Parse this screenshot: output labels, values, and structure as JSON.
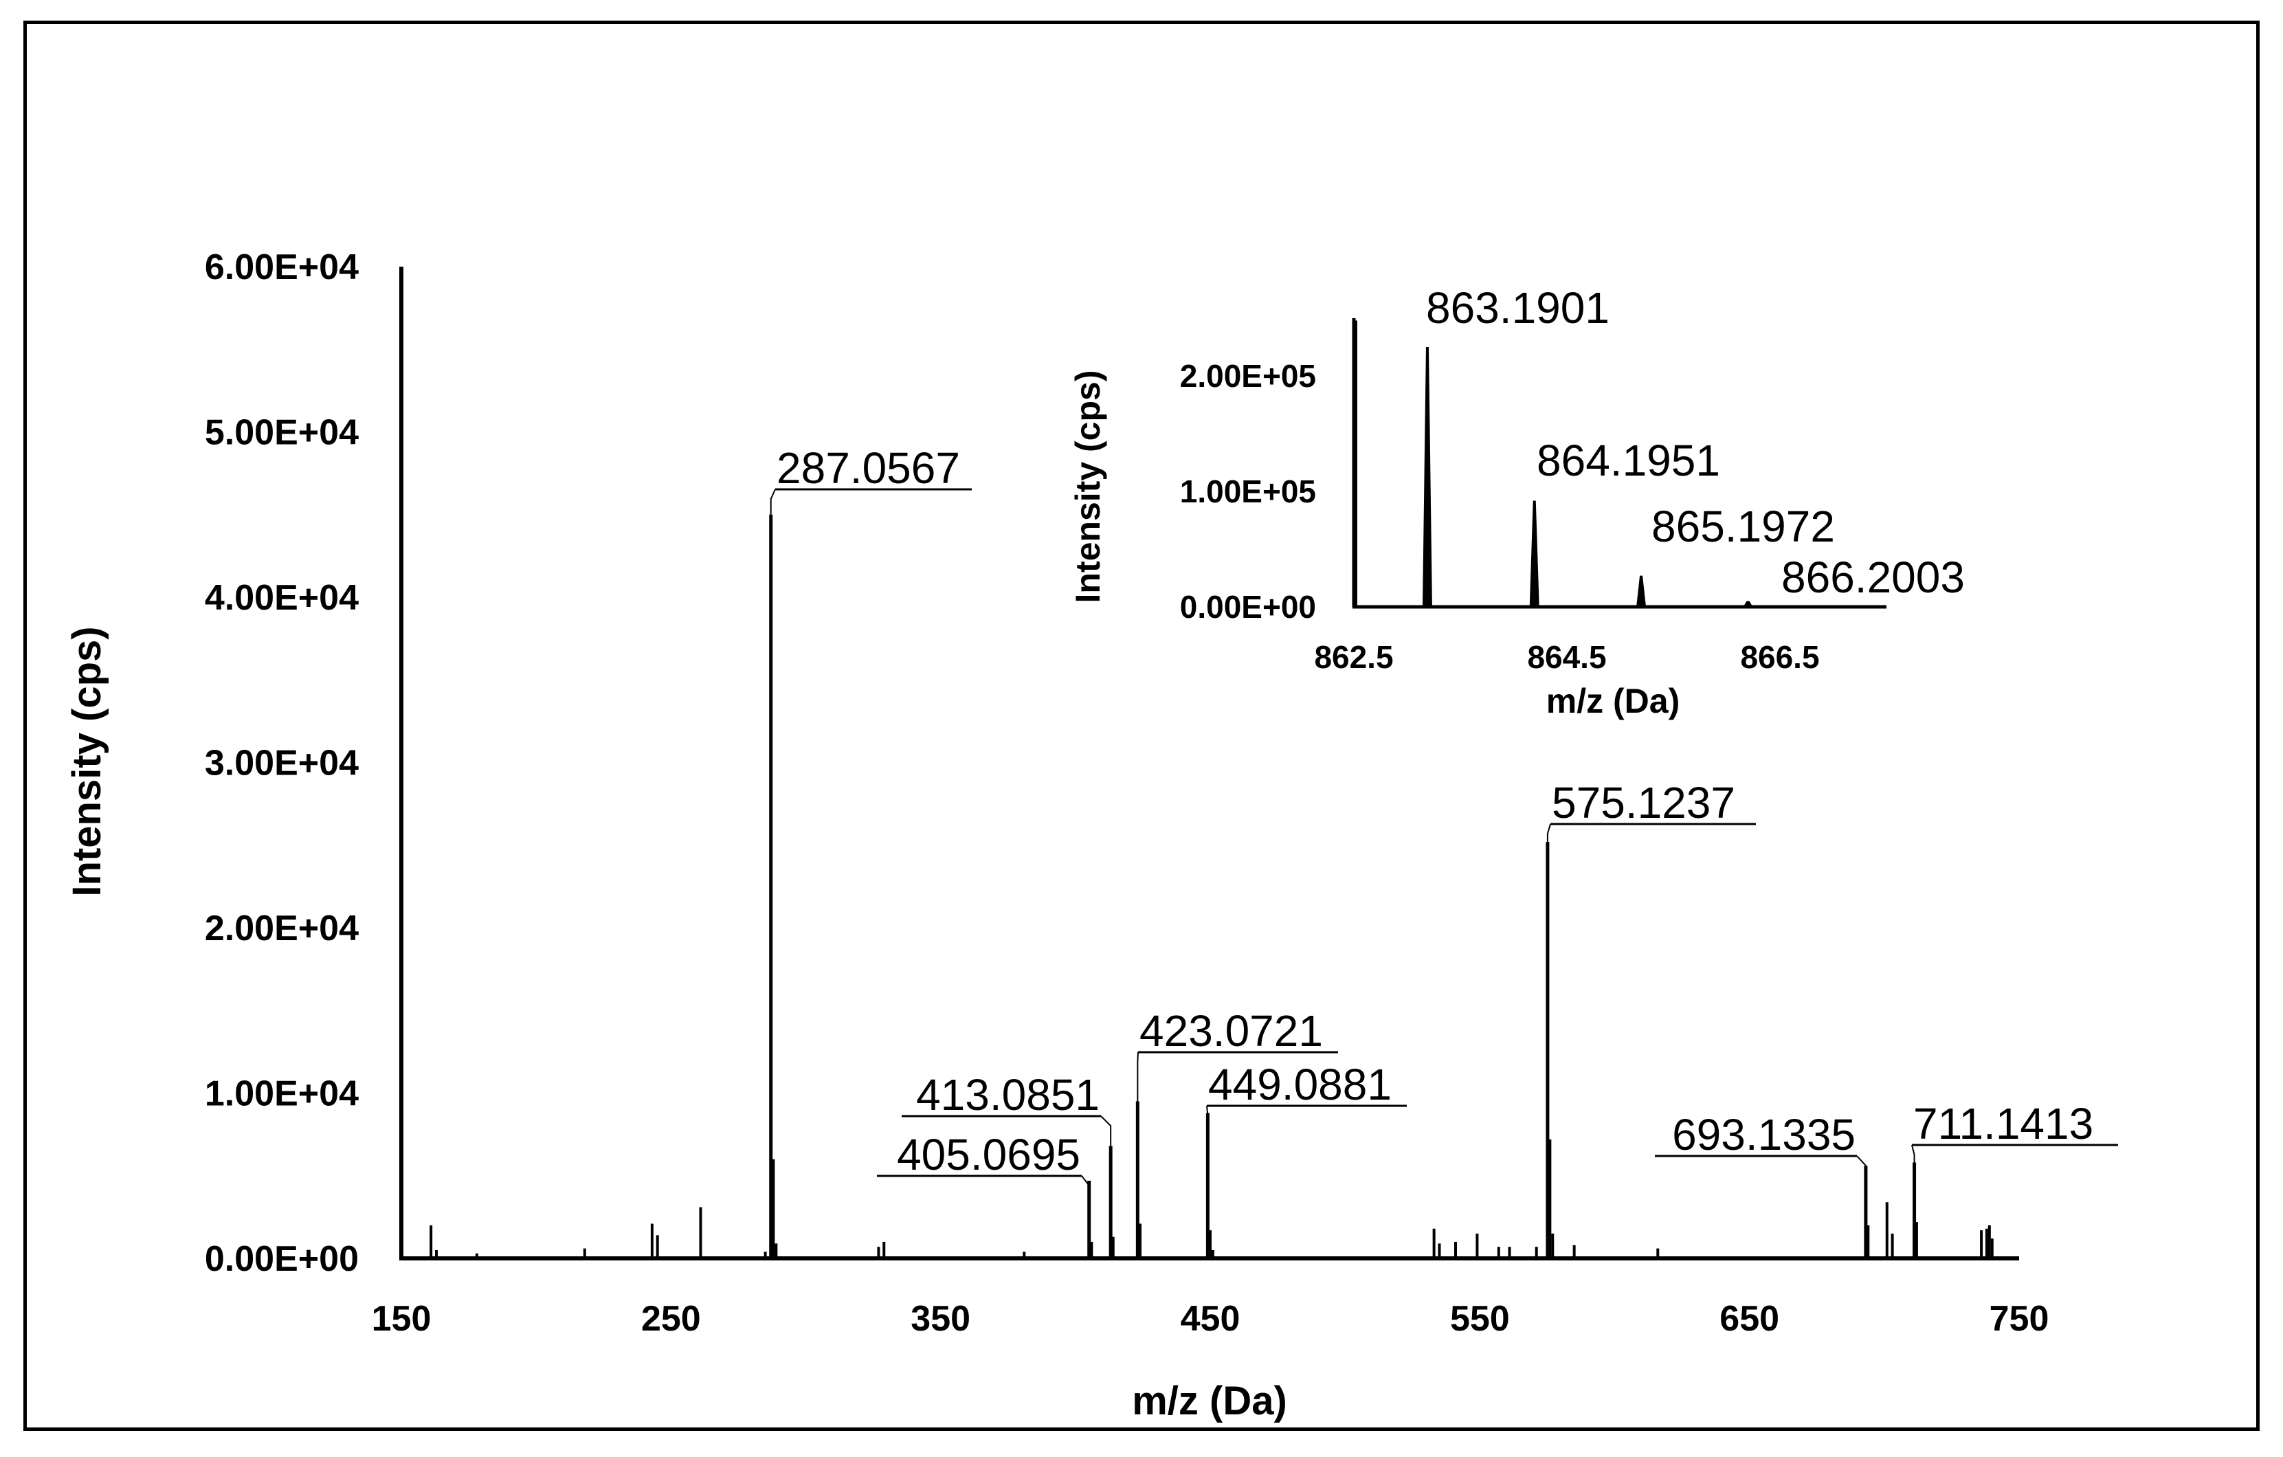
{
  "chart_data": [
    {
      "type": "bar",
      "title": "",
      "xlabel": "m/z (Da)",
      "ylabel": "Intensity (cps)",
      "xlim": [
        150,
        750
      ],
      "ylim": [
        0,
        60000
      ],
      "x_ticks": [
        150,
        250,
        350,
        450,
        550,
        650,
        750
      ],
      "x_tick_labels": [
        "150",
        "250",
        "350",
        "450",
        "550",
        "650",
        "750"
      ],
      "y_ticks": [
        0,
        10000,
        20000,
        30000,
        40000,
        50000,
        60000
      ],
      "y_tick_labels": [
        "0.00E+00",
        "1.00E+04",
        "2.00E+04",
        "3.00E+04",
        "4.00E+04",
        "5.00E+04",
        "6.00E+04"
      ],
      "labeled_peaks": [
        {
          "mz": 287.0567,
          "intensity": 45000,
          "label": "287.0567"
        },
        {
          "mz": 405.0695,
          "intensity": 4700,
          "label": "405.0695"
        },
        {
          "mz": 413.0851,
          "intensity": 6800,
          "label": "413.0851"
        },
        {
          "mz": 423.0721,
          "intensity": 9500,
          "label": "423.0721"
        },
        {
          "mz": 449.0881,
          "intensity": 8800,
          "label": "449.0881"
        },
        {
          "mz": 575.1237,
          "intensity": 25200,
          "label": "575.1237"
        },
        {
          "mz": 693.1335,
          "intensity": 5600,
          "label": "693.1335"
        },
        {
          "mz": 711.1413,
          "intensity": 5800,
          "label": "711.1413"
        }
      ],
      "minor_peaks": [
        {
          "mz": 161,
          "intensity": 2000
        },
        {
          "mz": 163,
          "intensity": 500
        },
        {
          "mz": 178,
          "intensity": 300
        },
        {
          "mz": 218,
          "intensity": 600
        },
        {
          "mz": 243,
          "intensity": 2100
        },
        {
          "mz": 245,
          "intensity": 1400
        },
        {
          "mz": 261,
          "intensity": 3100
        },
        {
          "mz": 285,
          "intensity": 400
        },
        {
          "mz": 288,
          "intensity": 6000
        },
        {
          "mz": 289,
          "intensity": 900
        },
        {
          "mz": 327,
          "intensity": 700
        },
        {
          "mz": 329,
          "intensity": 1000
        },
        {
          "mz": 381,
          "intensity": 400
        },
        {
          "mz": 406,
          "intensity": 1000
        },
        {
          "mz": 414,
          "intensity": 1300
        },
        {
          "mz": 424,
          "intensity": 2100
        },
        {
          "mz": 450,
          "intensity": 1700
        },
        {
          "mz": 451,
          "intensity": 500
        },
        {
          "mz": 533,
          "intensity": 1800
        },
        {
          "mz": 535,
          "intensity": 900
        },
        {
          "mz": 541,
          "intensity": 1000
        },
        {
          "mz": 549,
          "intensity": 1500
        },
        {
          "mz": 557,
          "intensity": 700
        },
        {
          "mz": 561,
          "intensity": 700
        },
        {
          "mz": 571,
          "intensity": 700
        },
        {
          "mz": 576,
          "intensity": 7200
        },
        {
          "mz": 577,
          "intensity": 1500
        },
        {
          "mz": 585,
          "intensity": 800
        },
        {
          "mz": 616,
          "intensity": 600
        },
        {
          "mz": 694,
          "intensity": 2000
        },
        {
          "mz": 701,
          "intensity": 3400
        },
        {
          "mz": 703,
          "intensity": 1500
        },
        {
          "mz": 712,
          "intensity": 2200
        },
        {
          "mz": 736,
          "intensity": 1700
        },
        {
          "mz": 738,
          "intensity": 1800
        },
        {
          "mz": 739,
          "intensity": 2000
        },
        {
          "mz": 740,
          "intensity": 1200
        }
      ]
    },
    {
      "type": "bar",
      "title": "",
      "xlabel": "m/z (Da)",
      "ylabel": "Intensity (cps)",
      "xlim": [
        862.5,
        867.5
      ],
      "ylim": [
        0,
        250000
      ],
      "x_ticks": [
        862.5,
        864.5,
        866.5
      ],
      "x_tick_labels": [
        "862.5",
        "864.5",
        "866.5"
      ],
      "y_ticks": [
        0,
        100000,
        200000
      ],
      "y_tick_labels": [
        "0.00E+00",
        "1.00E+05",
        "2.00E+05"
      ],
      "labeled_peaks": [
        {
          "mz": 863.1901,
          "intensity": 225000,
          "label": "863.1901"
        },
        {
          "mz": 864.1951,
          "intensity": 92000,
          "label": "864.1951"
        },
        {
          "mz": 865.1972,
          "intensity": 27000,
          "label": "865.1972"
        },
        {
          "mz": 866.2003,
          "intensity": 5000,
          "label": "866.2003"
        }
      ]
    }
  ]
}
